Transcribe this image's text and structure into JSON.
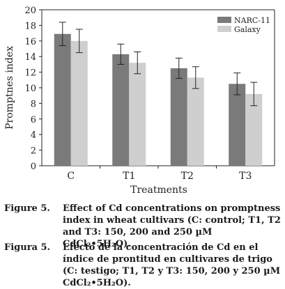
{
  "chart_data": {
    "type": "bar",
    "title": "",
    "xlabel": "Treatments",
    "ylabel": "Promptnes index",
    "ylim": [
      0,
      20
    ],
    "yticks": [
      0,
      2,
      4,
      6,
      8,
      10,
      12,
      14,
      16,
      18,
      20
    ],
    "categories": [
      "C",
      "T1",
      "T2",
      "T3"
    ],
    "series": [
      {
        "name": "NARC-11",
        "color": "#7a7a7a",
        "values": [
          16.9,
          14.3,
          12.5,
          10.5
        ],
        "errors": [
          1.5,
          1.3,
          1.3,
          1.4
        ]
      },
      {
        "name": "Galaxy",
        "color": "#cfcfcf",
        "values": [
          16.0,
          13.2,
          11.3,
          9.2
        ],
        "errors": [
          1.5,
          1.4,
          1.4,
          1.5
        ]
      }
    ],
    "legend": "top-right",
    "grid": false
  },
  "caption_en": {
    "label": "Figure 5.",
    "text": "Effect of Cd concentrations on promptness index in wheat cultivars (C: control; T1, T2 and T3: 150, 200 and 250 µM CdCl₂•5H₂O)."
  },
  "caption_es": {
    "label": "Figura 5.",
    "text": "Efecto de la concentración de Cd en el índice de prontitud en cultivares de trigo (C: testigo; T1, T2 y T3: 150, 200 y 250 µM CdCl₂•5H₂O)."
  }
}
